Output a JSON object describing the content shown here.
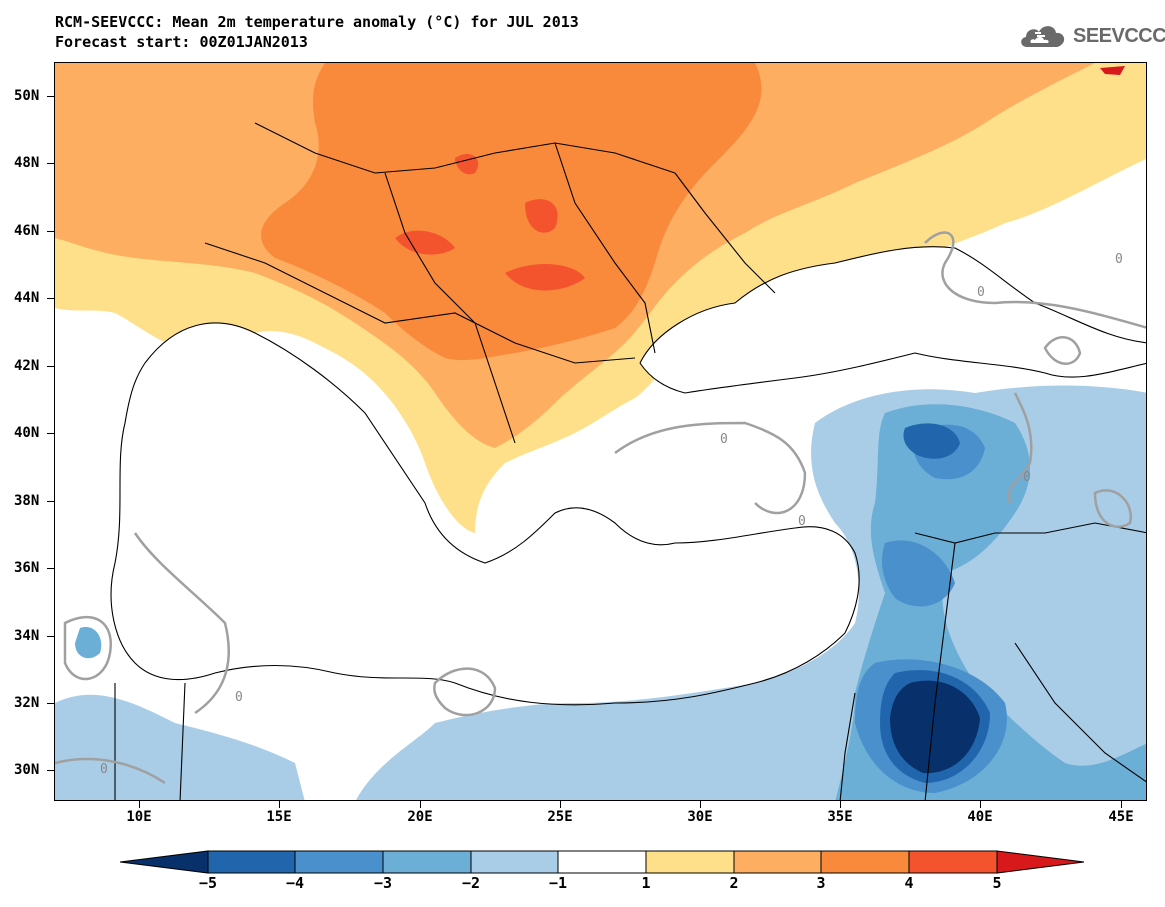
{
  "title": {
    "line1": "RCM-SEEVCCC: Mean 2m temperature anomaly (°C) for JUL 2013",
    "line2": "Forecast start: 00Z01JAN2013"
  },
  "logo": {
    "text": "SEEVCCC",
    "icon": "cloud-icon"
  },
  "axes": {
    "lat_labels": [
      "50N",
      "48N",
      "46N",
      "44N",
      "42N",
      "40N",
      "38N",
      "36N",
      "34N",
      "32N",
      "30N"
    ],
    "lon_labels": [
      "10E",
      "15E",
      "20E",
      "25E",
      "30E",
      "35E",
      "40E",
      "45E"
    ]
  },
  "colorbar": {
    "labels": [
      "−5",
      "−4",
      "−3",
      "−2",
      "−1",
      "1",
      "2",
      "3",
      "4",
      "5"
    ],
    "colors": [
      "#08306b",
      "#2166ac",
      "#4a90cc",
      "#6baed6",
      "#a9cde6",
      "#ffffff",
      "#fee08b",
      "#fdae61",
      "#f98a3c",
      "#f4542d",
      "#d7191c"
    ]
  },
  "contour_labels": [
    "0",
    "0",
    "0",
    "0",
    "0",
    "0",
    "0"
  ],
  "colors": {
    "land_outline": "#000000",
    "contour": "#a0a0a0",
    "logo": "#6a6a6a"
  }
}
